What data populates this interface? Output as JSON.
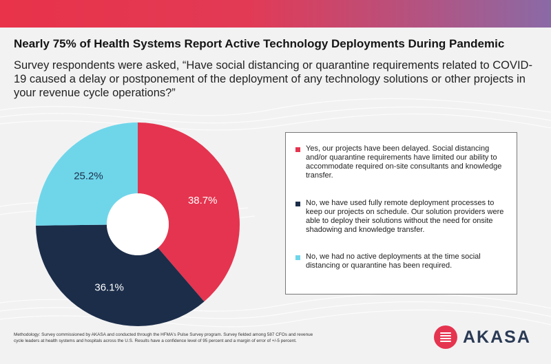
{
  "title": "Nearly 75% of Health Systems Report Active Technology Deployments During Pandemic",
  "subtitle": "Survey respondents were asked, “Have social distancing or quarantine requirements related to COVID-19 caused a delay or postponement of the deployment of any technology solutions or other projects in your revenue cycle operations?”",
  "chart_data": {
    "type": "pie",
    "donut": true,
    "series": [
      {
        "name": "Yes, our projects have been delayed. Social distancing and/or quarantine requirements have limited our ability to accommodate required on-site consultants and knowledge transfer.",
        "value": 38.7,
        "label": "38.7%",
        "color": "#e5344f"
      },
      {
        "name": "No, we have used fully remote deployment processes to keep our projects on schedule. Our solution providers were able to deploy their solutions without the need for onsite shadowing and knowledge transfer.",
        "value": 36.1,
        "label": "36.1%",
        "color": "#1b2d49"
      },
      {
        "name": "No, we had no active deployments at the time social distancing or quarantine has been required.",
        "value": 25.2,
        "label": "25.2%",
        "color": "#6fd6ea"
      }
    ]
  },
  "methodology": "Methodology: Survey commissioned by AKASA and conducted through the HFMA's Pulse Survey program. Survey fielded among 587 CFOs and revenue cycle leaders at health systems and hospitals across the U.S. Results have a confidence level of 95 percent and a margin of error of +/-5 percent.",
  "brand": {
    "name": "AKASA",
    "color": "#e5344f"
  }
}
